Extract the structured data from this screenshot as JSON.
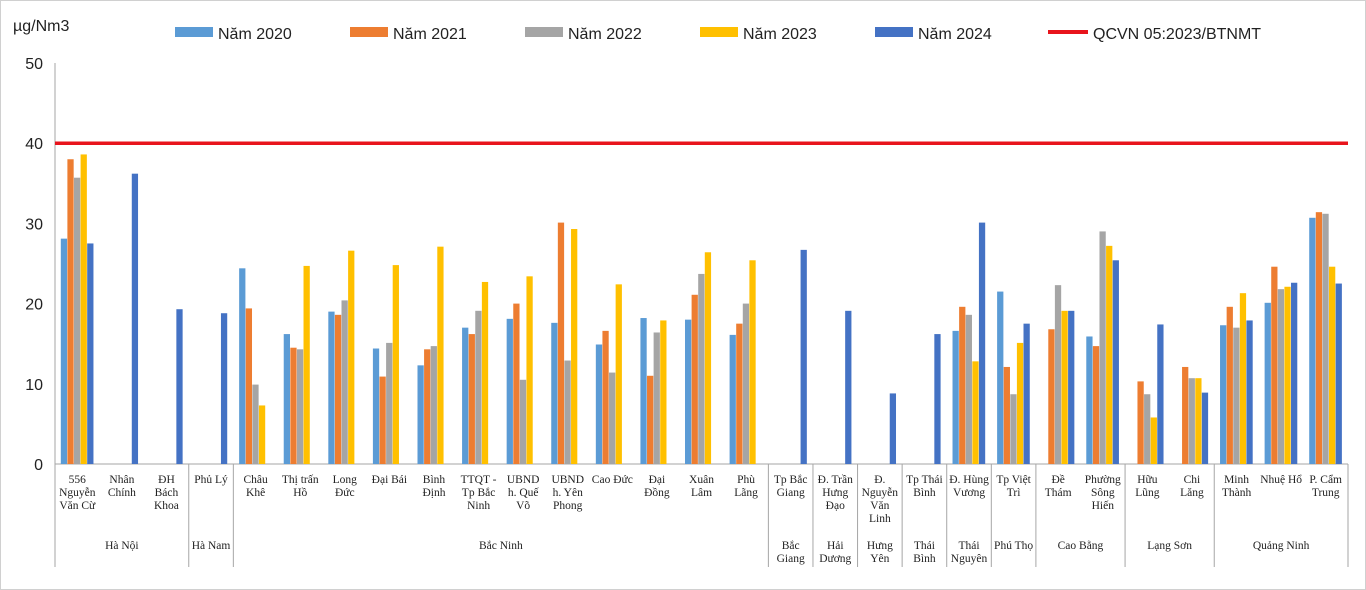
{
  "chart_data": {
    "type": "bar",
    "ylabel": "µg/Nm3",
    "ylim": [
      0,
      50
    ],
    "yticks": [
      "0",
      "10",
      "20",
      "30",
      "40",
      "50"
    ],
    "grid": false,
    "legend_position": "top",
    "reference_line": {
      "name": "QCVN 05:2023/BTNMT",
      "value": 40,
      "color": "#e8141c"
    },
    "series": [
      {
        "name": "Năm 2020",
        "color": "#5b9bd5"
      },
      {
        "name": "Năm 2021",
        "color": "#ed7d31"
      },
      {
        "name": "Năm 2022",
        "color": "#a5a5a5"
      },
      {
        "name": "Năm 2023",
        "color": "#ffc000"
      },
      {
        "name": "Năm 2024",
        "color": "#4472c4"
      }
    ],
    "categories": [
      {
        "label": [
          "556",
          "Nguyễn",
          "Văn Cừ"
        ],
        "values": [
          28.1,
          38.0,
          35.7,
          38.6,
          27.5
        ]
      },
      {
        "label": [
          "Nhân",
          "Chính"
        ],
        "values": [
          null,
          null,
          null,
          null,
          36.2
        ]
      },
      {
        "label": [
          "ĐH",
          "Bách",
          "Khoa"
        ],
        "values": [
          null,
          null,
          null,
          null,
          19.3
        ]
      },
      {
        "label": [
          "Phủ Lý"
        ],
        "values": [
          null,
          null,
          null,
          null,
          18.8
        ]
      },
      {
        "label": [
          "Châu",
          "Khê"
        ],
        "values": [
          24.4,
          19.4,
          9.9,
          7.3,
          null
        ]
      },
      {
        "label": [
          "Thị trấn",
          "Hồ"
        ],
        "values": [
          16.2,
          14.5,
          14.3,
          24.7,
          null
        ]
      },
      {
        "label": [
          "Long",
          "Đức"
        ],
        "values": [
          19.0,
          18.6,
          20.4,
          26.6,
          null
        ]
      },
      {
        "label": [
          "Đại Bái"
        ],
        "values": [
          14.4,
          10.9,
          15.1,
          24.8,
          null
        ]
      },
      {
        "label": [
          "Bình",
          "Định"
        ],
        "values": [
          12.3,
          14.3,
          14.7,
          27.1,
          null
        ]
      },
      {
        "label": [
          "TTQT -",
          "Tp Bắc",
          "Ninh"
        ],
        "values": [
          17.0,
          16.2,
          19.1,
          22.7,
          null
        ]
      },
      {
        "label": [
          "UBND",
          "h. Quế",
          "Võ"
        ],
        "values": [
          18.1,
          20.0,
          10.5,
          23.4,
          null
        ]
      },
      {
        "label": [
          "UBND",
          "h. Yên",
          "Phong"
        ],
        "values": [
          17.6,
          30.1,
          12.9,
          29.3,
          null
        ]
      },
      {
        "label": [
          "Cao Đức"
        ],
        "values": [
          14.9,
          16.6,
          11.4,
          22.4,
          null
        ]
      },
      {
        "label": [
          "Đại",
          "Đồng"
        ],
        "values": [
          18.2,
          11.0,
          16.4,
          17.9,
          null
        ]
      },
      {
        "label": [
          "Xuân",
          "Lâm"
        ],
        "values": [
          18.0,
          21.1,
          23.7,
          26.4,
          null
        ]
      },
      {
        "label": [
          "Phù",
          "Lãng"
        ],
        "values": [
          16.1,
          17.5,
          20.0,
          25.4,
          null
        ]
      },
      {
        "label": [
          "Tp Bắc",
          "Giang"
        ],
        "values": [
          null,
          null,
          null,
          null,
          26.7
        ]
      },
      {
        "label": [
          "Đ. Trần",
          "Hưng",
          "Đạo"
        ],
        "values": [
          null,
          null,
          null,
          null,
          19.1
        ]
      },
      {
        "label": [
          "Đ.",
          "Nguyễn",
          "Văn",
          "Linh"
        ],
        "values": [
          null,
          null,
          null,
          null,
          8.8
        ]
      },
      {
        "label": [
          "Tp Thái",
          "Bình"
        ],
        "values": [
          null,
          null,
          null,
          null,
          16.2
        ]
      },
      {
        "label": [
          "Đ. Hùng",
          "Vương"
        ],
        "values": [
          16.6,
          19.6,
          18.6,
          12.8,
          30.1
        ]
      },
      {
        "label": [
          "Tp Việt",
          "Trì"
        ],
        "values": [
          21.5,
          12.1,
          8.7,
          15.1,
          17.5
        ]
      },
      {
        "label": [
          "Đề",
          "Thám"
        ],
        "values": [
          null,
          16.8,
          22.3,
          19.1,
          19.1
        ]
      },
      {
        "label": [
          "Phường",
          "Sông",
          "Hiến"
        ],
        "values": [
          15.9,
          14.7,
          29.0,
          27.2,
          25.4
        ]
      },
      {
        "label": [
          "Hữu",
          "Lũng"
        ],
        "values": [
          null,
          10.3,
          8.7,
          5.8,
          17.4
        ]
      },
      {
        "label": [
          "Chi",
          "Lăng"
        ],
        "values": [
          null,
          12.1,
          10.7,
          10.7,
          8.9
        ]
      },
      {
        "label": [
          "Minh",
          "Thành"
        ],
        "values": [
          17.3,
          19.6,
          17.0,
          21.3,
          17.9
        ]
      },
      {
        "label": [
          "Nhuệ Hổ"
        ],
        "values": [
          20.1,
          24.6,
          21.8,
          22.1,
          22.6
        ]
      },
      {
        "label": [
          "P. Cẩm",
          "Trung"
        ],
        "values": [
          30.7,
          31.4,
          31.2,
          24.6,
          22.5
        ]
      }
    ],
    "groups": [
      {
        "label": [
          "Hà Nội"
        ],
        "span": 3
      },
      {
        "label": [
          "Hà Nam"
        ],
        "span": 1
      },
      {
        "label": [
          "Bắc Ninh"
        ],
        "span": 12
      },
      {
        "label": [
          "Bắc",
          "Giang"
        ],
        "span": 1
      },
      {
        "label": [
          "Hải",
          "Dương"
        ],
        "span": 1
      },
      {
        "label": [
          "Hưng",
          "Yên"
        ],
        "span": 1
      },
      {
        "label": [
          "Thái",
          "Bình"
        ],
        "span": 1
      },
      {
        "label": [
          "Thái",
          "Nguyên"
        ],
        "span": 1
      },
      {
        "label": [
          "Phú Thọ"
        ],
        "span": 1
      },
      {
        "label": [
          "Cao Bằng"
        ],
        "span": 2
      },
      {
        "label": [
          "Lạng Sơn"
        ],
        "span": 2
      },
      {
        "label": [
          "Quảng Ninh"
        ],
        "span": 3
      }
    ]
  }
}
